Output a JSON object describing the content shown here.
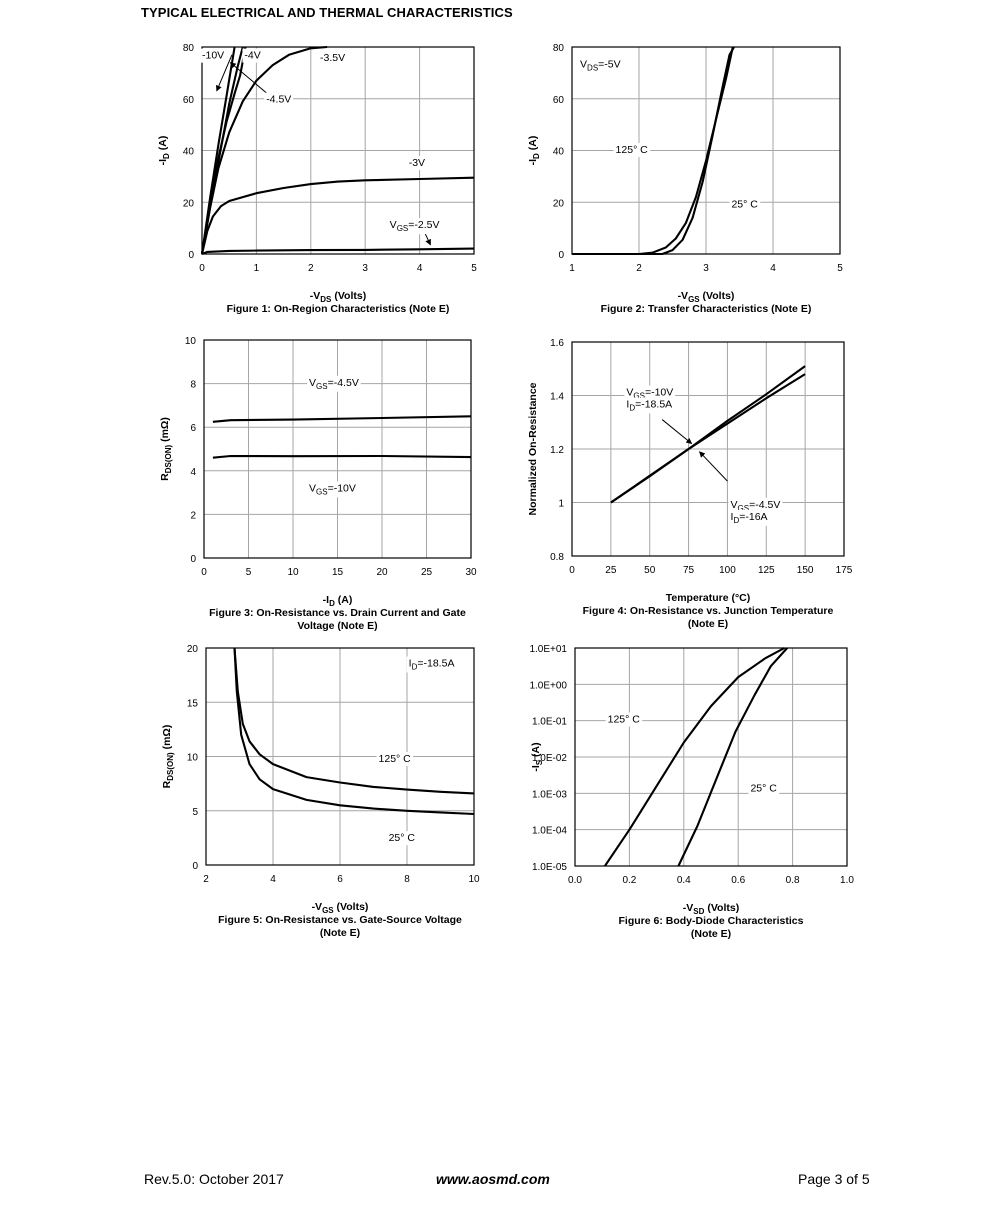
{
  "page": {
    "title": "TYPICAL ELECTRICAL AND THERMAL CHARACTERISTICS"
  },
  "footer": {
    "revision": "Rev.5.0: October 2017",
    "website": "www.aosmd.com",
    "page_number": "Page 3 of 5"
  },
  "chart_data": [
    {
      "id": "fig1",
      "type": "line",
      "caption": "Figure 1: On-Region Characteristics (Note E)",
      "xlabel": {
        "main": "-V",
        "sub": "DS",
        "after": " (Volts)"
      },
      "ylabel": {
        "main": "-I",
        "sub": "D",
        "after": " (A)"
      },
      "xlim": [
        0,
        5
      ],
      "ylim": [
        0,
        80
      ],
      "xticks": [
        "0",
        "1",
        "2",
        "3",
        "4",
        "5"
      ],
      "yticks": [
        "0",
        "20",
        "40",
        "60",
        "80"
      ],
      "series": [
        {
          "name": "-10V",
          "points": [
            [
              0,
              0
            ],
            [
              0.15,
              22
            ],
            [
              0.3,
              42
            ],
            [
              0.45,
              61
            ],
            [
              0.6,
              80
            ]
          ]
        },
        {
          "name": "-4V",
          "points": [
            [
              0,
              0
            ],
            [
              0.18,
              22
            ],
            [
              0.35,
              41
            ],
            [
              0.5,
              58
            ],
            [
              0.65,
              72
            ],
            [
              0.75,
              80
            ]
          ]
        },
        {
          "name": "-4.5V",
          "points": [
            [
              0,
              0
            ],
            [
              0.15,
              20
            ],
            [
              0.3,
              37
            ],
            [
              0.45,
              51
            ],
            [
              0.6,
              62
            ],
            [
              0.7,
              69
            ],
            [
              0.8,
              80
            ]
          ]
        },
        {
          "name": "-3.5V",
          "points": [
            [
              0,
              0
            ],
            [
              0.15,
              18
            ],
            [
              0.3,
              33
            ],
            [
              0.5,
              47
            ],
            [
              0.75,
              59
            ],
            [
              1,
              67
            ],
            [
              1.3,
              73
            ],
            [
              1.6,
              77
            ],
            [
              2,
              79.5
            ],
            [
              2.3,
              80
            ]
          ]
        },
        {
          "name": "-3V",
          "points": [
            [
              0,
              0
            ],
            [
              0.1,
              9
            ],
            [
              0.2,
              14.5
            ],
            [
              0.35,
              18.5
            ],
            [
              0.5,
              20.5
            ],
            [
              1,
              23.5
            ],
            [
              1.5,
              25.5
            ],
            [
              2,
              27
            ],
            [
              2.5,
              28
            ],
            [
              3,
              28.5
            ],
            [
              4,
              29
            ],
            [
              5,
              29.5
            ]
          ]
        },
        {
          "name": "VGS=-2.5V",
          "points": [
            [
              0,
              0
            ],
            [
              0.1,
              0.8
            ],
            [
              0.5,
              1.2
            ],
            [
              1,
              1.3
            ],
            [
              2,
              1.5
            ],
            [
              3,
              1.6
            ],
            [
              4,
              1.8
            ],
            [
              5,
              2.1
            ]
          ]
        }
      ],
      "annotations": [
        {
          "text": "-10V",
          "x": 0.0,
          "y": 75.5
        },
        {
          "text": "-4V",
          "x": 0.78,
          "y": 75.5
        },
        {
          "text": "-3.5V",
          "x": 2.17,
          "y": 74.5
        },
        {
          "text": "-4.5V",
          "x": 1.18,
          "y": 58.5
        },
        {
          "text": "-3V",
          "x": 3.8,
          "y": 34
        },
        {
          "main": "V",
          "sub": "GS",
          "after": "=-2.5V",
          "x": 3.45,
          "y": 10
        }
      ],
      "arrows": [
        {
          "from": [
            0.55,
            77
          ],
          "to": [
            0.27,
            63
          ]
        },
        {
          "from": [
            1.2,
            62
          ],
          "to": [
            0.52,
            74
          ]
        },
        {
          "from": [
            4.1,
            8
          ],
          "to": [
            4.2,
            3.5
          ]
        }
      ]
    },
    {
      "id": "fig2",
      "type": "line",
      "caption": "Figure 2: Transfer Characteristics (Note E)",
      "xlabel": {
        "main": "-V",
        "sub": "GS",
        "after": " (Volts)"
      },
      "ylabel": {
        "main": "-I",
        "sub": "D",
        "after": " (A)"
      },
      "xlim": [
        1,
        5
      ],
      "ylim": [
        0,
        80
      ],
      "xticks": [
        "1",
        "2",
        "3",
        "4",
        "5"
      ],
      "yticks": [
        "0",
        "20",
        "40",
        "60",
        "80"
      ],
      "series": [
        {
          "name": "125° C",
          "points": [
            [
              1,
              0
            ],
            [
              2,
              0
            ],
            [
              2.2,
              0.5
            ],
            [
              2.4,
              2.5
            ],
            [
              2.55,
              6
            ],
            [
              2.7,
              12
            ],
            [
              2.85,
              22
            ],
            [
              3,
              36
            ],
            [
              3.15,
              52
            ],
            [
              3.3,
              68
            ],
            [
              3.4,
              80
            ]
          ]
        },
        {
          "name": "25° C",
          "points": [
            [
              1,
              0
            ],
            [
              2.35,
              0
            ],
            [
              2.5,
              1.5
            ],
            [
              2.65,
              5.5
            ],
            [
              2.8,
              14
            ],
            [
              2.95,
              28
            ],
            [
              3.1,
              46
            ],
            [
              3.25,
              65
            ],
            [
              3.35,
              77
            ],
            [
              3.42,
              80
            ]
          ]
        }
      ],
      "annotations": [
        {
          "main": "V",
          "sub": "DS",
          "after": "=-5V",
          "x": 1.12,
          "y": 72
        },
        {
          "text": "125° C",
          "x": 1.65,
          "y": 39
        },
        {
          "text": "25° C",
          "x": 3.38,
          "y": 18
        }
      ],
      "arrows": []
    },
    {
      "id": "fig3",
      "type": "line",
      "caption": [
        "Figure 3: On-Resistance vs. Drain Current and Gate",
        "Voltage (Note E)"
      ],
      "xlabel": {
        "main": "-I",
        "sub": "D",
        "after": " (A)"
      },
      "ylabel": {
        "main": "R",
        "sub": "DS(ON)",
        "after": " (mΩ)"
      },
      "xlim": [
        0,
        30
      ],
      "ylim": [
        0,
        10
      ],
      "xticks": [
        "0",
        "5",
        "10",
        "15",
        "20",
        "25",
        "30"
      ],
      "yticks": [
        "0",
        "2",
        "4",
        "6",
        "8",
        "10"
      ],
      "series": [
        {
          "name": "VGS=-4.5V",
          "points": [
            [
              1,
              6.25
            ],
            [
              3,
              6.32
            ],
            [
              10,
              6.35
            ],
            [
              20,
              6.42
            ],
            [
              30,
              6.5
            ]
          ]
        },
        {
          "name": "VGS=-10V",
          "points": [
            [
              1,
              4.6
            ],
            [
              3,
              4.68
            ],
            [
              10,
              4.67
            ],
            [
              20,
              4.68
            ],
            [
              30,
              4.63
            ]
          ]
        }
      ],
      "annotations": [
        {
          "main": "V",
          "sub": "GS",
          "after": "=-4.5V",
          "x": 11.8,
          "y": 7.9
        },
        {
          "main": "V",
          "sub": "GS",
          "after": "=-10V",
          "x": 11.8,
          "y": 3.05
        }
      ],
      "arrows": []
    },
    {
      "id": "fig4",
      "type": "line",
      "caption": [
        "Figure 4: On-Resistance vs. Junction Temperature",
        "(Note E)"
      ],
      "xlabel": {
        "main": "Temperature (°C)",
        "sub": "",
        "after": ""
      },
      "ylabel": {
        "main": "Normalized On-Resistance",
        "sub": "",
        "after": ""
      },
      "xlim": [
        0,
        175
      ],
      "ylim": [
        0.8,
        1.6
      ],
      "xticks": [
        "0",
        "25",
        "50",
        "75",
        "100",
        "125",
        "150",
        "175"
      ],
      "yticks": [
        "0.8",
        "1",
        "1.2",
        "1.4",
        "1.6"
      ],
      "series": [
        {
          "name": "VGS=-10V ID=-18.5A",
          "points": [
            [
              25,
              1
            ],
            [
              50,
              1.098
            ],
            [
              75,
              1.2
            ],
            [
              100,
              1.305
            ],
            [
              125,
              1.405
            ],
            [
              150,
              1.51
            ]
          ]
        },
        {
          "name": "VGS=-4.5V ID=-16A",
          "points": [
            [
              25,
              1
            ],
            [
              50,
              1.1
            ],
            [
              75,
              1.2
            ],
            [
              100,
              1.295
            ],
            [
              125,
              1.39
            ],
            [
              150,
              1.48
            ]
          ]
        }
      ],
      "annotations": [
        {
          "main": "V",
          "sub": "GS",
          "after": "=-10V",
          "x": 35,
          "y": 1.4
        },
        {
          "main": "I",
          "sub": "D",
          "after": "=-18.5A",
          "x": 35,
          "y": 1.355
        },
        {
          "main": "V",
          "sub": "GS",
          "after": "=-4.5V",
          "x": 102,
          "y": 0.98
        },
        {
          "main": "I",
          "sub": "D",
          "after": "=-16A",
          "x": 102,
          "y": 0.935
        }
      ],
      "arrows": [
        {
          "from": [
            58,
            1.31
          ],
          "to": [
            77,
            1.22
          ]
        },
        {
          "from": [
            100,
            1.08
          ],
          "to": [
            82,
            1.19
          ]
        }
      ]
    },
    {
      "id": "fig5",
      "type": "line",
      "caption": [
        "Figure 5: On-Resistance vs. Gate-Source Voltage",
        "(Note E)"
      ],
      "xlabel": {
        "main": "-V",
        "sub": "GS",
        "after": " (Volts)"
      },
      "ylabel": {
        "main": "R",
        "sub": "DS(ON)",
        "after": " (mΩ)"
      },
      "xlim": [
        2,
        10
      ],
      "ylim": [
        0,
        20
      ],
      "xticks": [
        "2",
        "4",
        "6",
        "8",
        "10"
      ],
      "yticks": [
        "0",
        "5",
        "10",
        "15",
        "20"
      ],
      "series": [
        {
          "name": "125° C",
          "points": [
            [
              2.85,
              20
            ],
            [
              2.95,
              16
            ],
            [
              3.1,
              13
            ],
            [
              3.3,
              11.4
            ],
            [
              3.6,
              10.2
            ],
            [
              4,
              9.3
            ],
            [
              5,
              8.1
            ],
            [
              6,
              7.6
            ],
            [
              7,
              7.2
            ],
            [
              8,
              6.95
            ],
            [
              9,
              6.75
            ],
            [
              10,
              6.6
            ]
          ]
        },
        {
          "name": "25° C",
          "points": [
            [
              2.85,
              20
            ],
            [
              2.92,
              16
            ],
            [
              3.05,
              12
            ],
            [
              3.3,
              9.3
            ],
            [
              3.6,
              7.9
            ],
            [
              4,
              7
            ],
            [
              5,
              6
            ],
            [
              6,
              5.5
            ],
            [
              7,
              5.2
            ],
            [
              8,
              5
            ],
            [
              9,
              4.85
            ],
            [
              10,
              4.7
            ]
          ]
        }
      ],
      "annotations": [
        {
          "main": "I",
          "sub": "D",
          "after": "=-18.5A",
          "x": 8.05,
          "y": 18.3
        },
        {
          "text": "125° C",
          "x": 7.15,
          "y": 9.5
        },
        {
          "text": "25° C",
          "x": 7.45,
          "y": 2.2
        }
      ],
      "arrows": []
    },
    {
      "id": "fig6",
      "type": "line",
      "caption": [
        "Figure 6: Body-Diode Characteristics",
        "(Note E)"
      ],
      "xlabel": {
        "main": "-V",
        "sub": "SD",
        "after": " (Volts)"
      },
      "ylabel": {
        "main": "-I",
        "sub": "S",
        "after": " (A)"
      },
      "xlim": [
        0,
        1
      ],
      "ylim": [
        -5,
        1
      ],
      "yscale": "log",
      "xticks": [
        "0.0",
        "0.2",
        "0.4",
        "0.6",
        "0.8",
        "1.0"
      ],
      "yticks": [
        "1.0E-05",
        "1.0E-04",
        "1.0E-03",
        "1.0E-02",
        "1.0E-01",
        "1.0E+00",
        "1.0E+01"
      ],
      "series": [
        {
          "name": "125° C",
          "points": [
            [
              0.11,
              -5
            ],
            [
              0.2,
              -4
            ],
            [
              0.3,
              -2.8
            ],
            [
              0.4,
              -1.6
            ],
            [
              0.5,
              -0.6
            ],
            [
              0.6,
              0.2
            ],
            [
              0.7,
              0.72
            ],
            [
              0.77,
              1
            ]
          ]
        },
        {
          "name": "25° C",
          "points": [
            [
              0.38,
              -5
            ],
            [
              0.45,
              -3.9
            ],
            [
              0.52,
              -2.6
            ],
            [
              0.59,
              -1.3
            ],
            [
              0.66,
              -0.3
            ],
            [
              0.72,
              0.5
            ],
            [
              0.78,
              1
            ]
          ]
        }
      ],
      "annotations": [
        {
          "text": "125° C",
          "x": 0.12,
          "y": -1.05
        },
        {
          "text": "25° C",
          "x": 0.645,
          "y": -2.95
        }
      ],
      "arrows": []
    }
  ]
}
